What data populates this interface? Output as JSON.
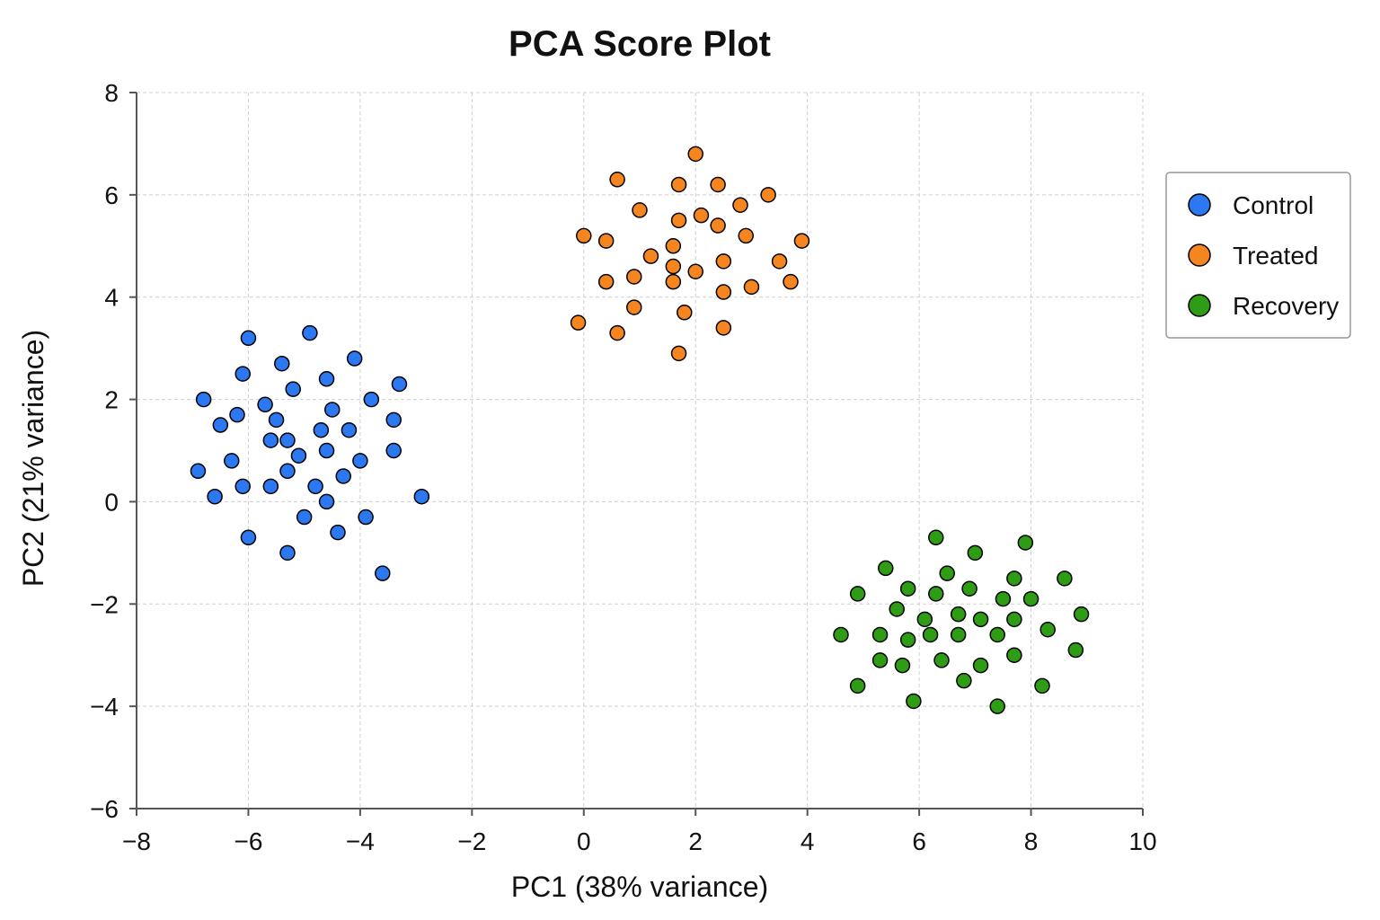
{
  "chart_data": {
    "type": "scatter",
    "title": "PCA Score Plot",
    "xlabel": "PC1 (38% variance)",
    "ylabel": "PC2 (21% variance)",
    "xlim": [
      -8,
      10
    ],
    "ylim": [
      -6,
      8
    ],
    "xticks": [
      -8,
      -6,
      -4,
      -2,
      0,
      2,
      4,
      6,
      8,
      10
    ],
    "yticks": [
      -6,
      -4,
      -2,
      0,
      2,
      4,
      6,
      8
    ],
    "grid": true,
    "legend_position": "right",
    "series": [
      {
        "name": "Control",
        "color": "#2b78f0",
        "x": [
          -6.0,
          -4.9,
          -5.4,
          -4.1,
          -6.1,
          -4.6,
          -3.3,
          -6.8,
          -5.2,
          -3.8,
          -5.7,
          -6.2,
          -4.5,
          -6.5,
          -5.5,
          -3.4,
          -4.7,
          -4.2,
          -5.6,
          -5.3,
          -4.6,
          -3.4,
          -5.1,
          -6.3,
          -4.0,
          -6.9,
          -5.3,
          -4.3,
          -6.1,
          -5.6,
          -4.8,
          -6.6,
          -2.9,
          -4.6,
          -5.0,
          -3.9,
          -4.4,
          -6.0,
          -5.3,
          -3.6
        ],
        "y": [
          3.2,
          3.3,
          2.7,
          2.8,
          2.5,
          2.4,
          2.3,
          2.0,
          2.2,
          2.0,
          1.9,
          1.7,
          1.8,
          1.5,
          1.6,
          1.6,
          1.4,
          1.4,
          1.2,
          1.2,
          1.0,
          1.0,
          0.9,
          0.8,
          0.8,
          0.6,
          0.6,
          0.5,
          0.3,
          0.3,
          0.3,
          0.1,
          0.1,
          0.0,
          -0.3,
          -0.3,
          -0.6,
          -0.7,
          -1.0,
          -1.4
        ]
      },
      {
        "name": "Treated",
        "color": "#f5861f",
        "x": [
          2.0,
          0.6,
          1.7,
          2.4,
          3.3,
          1.0,
          2.1,
          2.8,
          1.7,
          2.4,
          0.0,
          0.4,
          2.9,
          3.9,
          1.6,
          1.2,
          2.5,
          3.5,
          1.6,
          2.0,
          0.9,
          1.6,
          0.4,
          3.7,
          2.5,
          3.0,
          0.9,
          1.8,
          -0.1,
          2.5,
          0.6,
          1.7
        ],
        "y": [
          6.8,
          6.3,
          6.2,
          6.2,
          6.0,
          5.7,
          5.6,
          5.8,
          5.5,
          5.4,
          5.2,
          5.1,
          5.2,
          5.1,
          5.0,
          4.8,
          4.7,
          4.7,
          4.6,
          4.5,
          4.4,
          4.3,
          4.3,
          4.3,
          4.1,
          4.2,
          3.8,
          3.7,
          3.5,
          3.4,
          3.3,
          2.9
        ]
      },
      {
        "name": "Recovery",
        "color": "#2f9c16",
        "x": [
          6.3,
          7.9,
          7.0,
          5.4,
          6.5,
          8.6,
          7.7,
          6.9,
          5.8,
          4.9,
          6.3,
          8.0,
          7.5,
          5.6,
          6.7,
          8.9,
          6.1,
          7.1,
          7.7,
          4.6,
          5.3,
          6.2,
          6.7,
          7.4,
          5.8,
          8.3,
          8.8,
          7.7,
          6.4,
          5.3,
          5.7,
          7.1,
          6.8,
          4.9,
          8.2,
          5.9,
          7.4
        ],
        "y": [
          -0.7,
          -0.8,
          -1.0,
          -1.3,
          -1.4,
          -1.5,
          -1.5,
          -1.7,
          -1.7,
          -1.8,
          -1.8,
          -1.9,
          -1.9,
          -2.1,
          -2.2,
          -2.2,
          -2.3,
          -2.3,
          -2.3,
          -2.6,
          -2.6,
          -2.6,
          -2.6,
          -2.6,
          -2.7,
          -2.5,
          -2.9,
          -3.0,
          -3.1,
          -3.1,
          -3.2,
          -3.2,
          -3.5,
          -3.6,
          -3.6,
          -3.9,
          -4.0
        ]
      }
    ]
  }
}
